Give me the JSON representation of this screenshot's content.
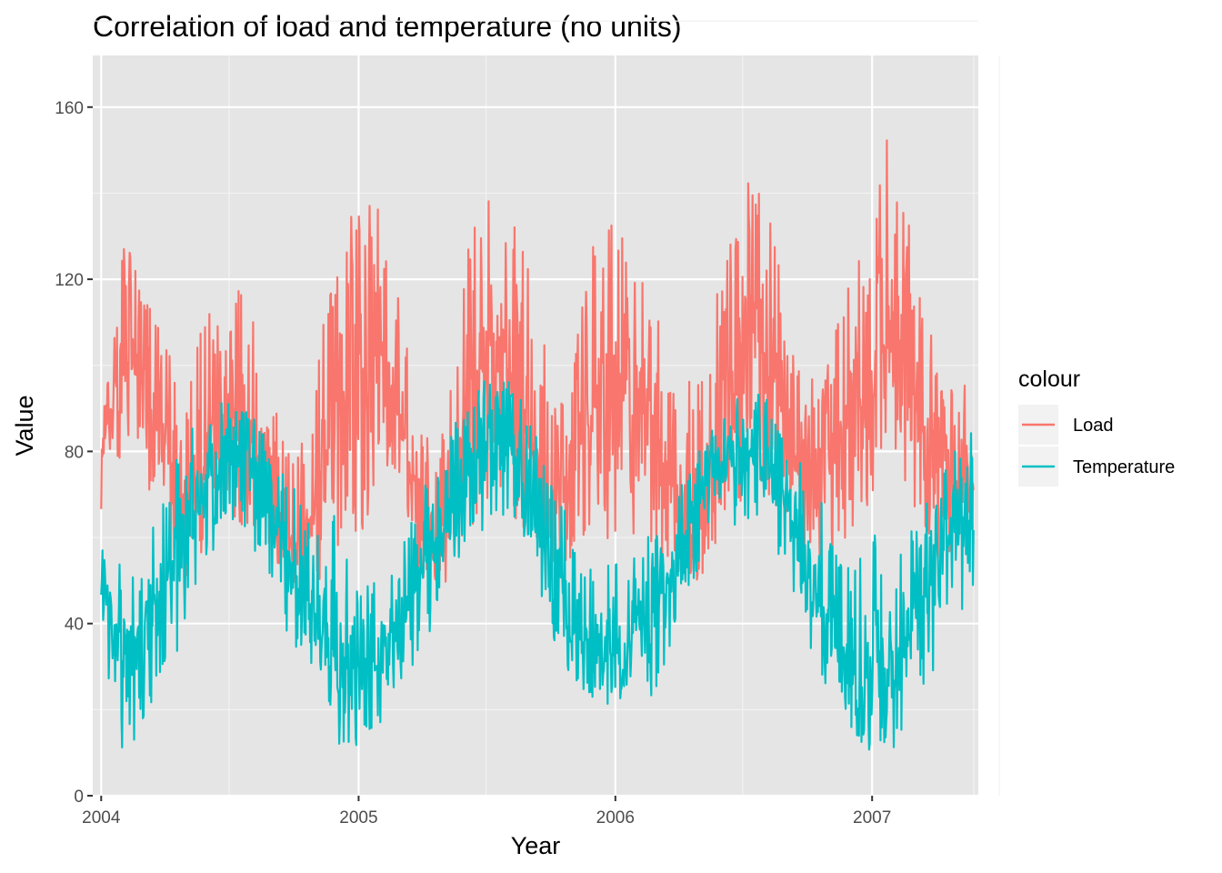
{
  "chart_data": {
    "type": "line",
    "title": "Correlation of load and temperature (no units)",
    "xlabel": "Year",
    "ylabel": "Value",
    "x_ticks": [
      "2004",
      "2005",
      "2006",
      "2007"
    ],
    "y_ticks": [
      "0",
      "40",
      "80",
      "120",
      "160"
    ],
    "xlim": [
      "2003-12-20",
      "2007-06-01"
    ],
    "ylim": [
      0,
      172
    ],
    "grid": true,
    "background": "#e5e5e5",
    "legend": {
      "title": "colour",
      "position": "right"
    },
    "x": [
      "2004-01-01",
      "2004-02-01",
      "2004-03-01",
      "2004-04-01",
      "2004-05-01",
      "2004-06-01",
      "2004-07-01",
      "2004-08-01",
      "2004-09-01",
      "2004-10-01",
      "2004-11-01",
      "2004-12-01",
      "2005-01-01",
      "2005-02-01",
      "2005-03-01",
      "2005-04-01",
      "2005-05-01",
      "2005-06-01",
      "2005-07-01",
      "2005-08-01",
      "2005-09-01",
      "2005-10-01",
      "2005-11-01",
      "2005-12-01",
      "2006-01-01",
      "2006-02-01",
      "2006-03-01",
      "2006-04-01",
      "2006-05-01",
      "2006-06-01",
      "2006-07-01",
      "2006-08-01",
      "2006-09-01",
      "2006-10-01",
      "2006-11-01",
      "2006-12-01",
      "2007-01-01",
      "2007-02-01",
      "2007-03-01",
      "2007-04-01",
      "2007-05-01"
    ],
    "series": [
      {
        "name": "Load",
        "color": "#f8766d",
        "values": [
          78,
          103,
          95,
          80,
          62,
          80,
          88,
          86,
          70,
          57,
          68,
          86,
          100,
          106,
          88,
          66,
          60,
          88,
          98,
          100,
          84,
          70,
          76,
          90,
          94,
          92,
          84,
          68,
          66,
          87,
          100,
          106,
          84,
          68,
          76,
          88,
          96,
          110,
          94,
          78,
          72
        ],
        "low": [
          65,
          80,
          70,
          55,
          48,
          58,
          62,
          62,
          55,
          47,
          48,
          56,
          60,
          70,
          62,
          50,
          48,
          60,
          66,
          66,
          60,
          52,
          55,
          62,
          58,
          60,
          58,
          50,
          50,
          62,
          68,
          70,
          58,
          52,
          52,
          58,
          60,
          68,
          64,
          56,
          50
        ],
        "high": [
          85,
          130,
          120,
          105,
          95,
          118,
          120,
          118,
          100,
          80,
          98,
          130,
          140,
          138,
          115,
          95,
          90,
          126,
          143,
          138,
          124,
          100,
          106,
          136,
          133,
          125,
          112,
          98,
          97,
          125,
          140,
          150,
          115,
          95,
          104,
          122,
          130,
          164,
          130,
          106,
          98
        ]
      },
      {
        "name": "Temperature",
        "color": "#00bfc4",
        "values": [
          50,
          34,
          38,
          50,
          62,
          74,
          78,
          76,
          66,
          52,
          42,
          32,
          30,
          30,
          38,
          52,
          62,
          74,
          80,
          82,
          72,
          56,
          40,
          32,
          34,
          38,
          44,
          58,
          68,
          76,
          80,
          80,
          68,
          52,
          40,
          32,
          32,
          28,
          40,
          52,
          62
        ],
        "low": [
          32,
          7,
          16,
          25,
          40,
          55,
          60,
          58,
          50,
          32,
          28,
          12,
          10,
          12,
          20,
          32,
          45,
          58,
          62,
          64,
          55,
          38,
          25,
          18,
          20,
          18,
          25,
          40,
          52,
          60,
          62,
          62,
          52,
          36,
          20,
          15,
          10,
          8,
          22,
          30,
          40
        ],
        "high": [
          72,
          55,
          55,
          72,
          86,
          90,
          92,
          90,
          80,
          72,
          62,
          66,
          58,
          50,
          58,
          72,
          80,
          92,
          97,
          98,
          88,
          74,
          62,
          52,
          55,
          56,
          66,
          72,
          82,
          88,
          94,
          93,
          84,
          74,
          66,
          56,
          62,
          55,
          64,
          72,
          86
        ]
      }
    ]
  }
}
